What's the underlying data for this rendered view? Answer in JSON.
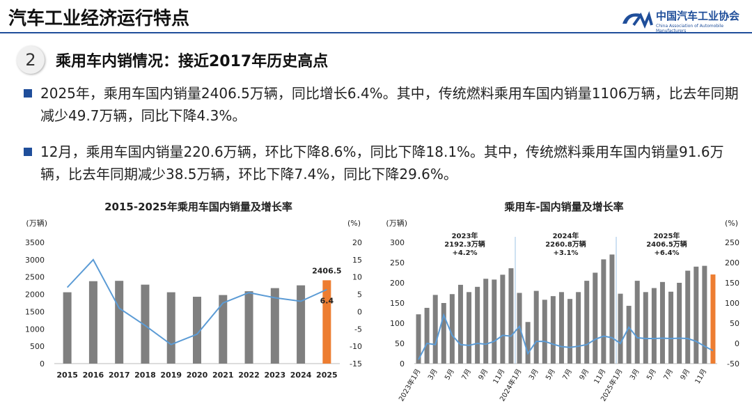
{
  "header": {
    "title": "汽车工业经济运行特点",
    "logo_name": "中国汽车工业协会",
    "logo_subtitle": "China Association of Automobile Manufacturers"
  },
  "section": {
    "number": "2",
    "title": "乘用车内销情况：接近2017年历史高点"
  },
  "bullets": [
    "2025年，乘用车国内销量2406.5万辆，同比增长6.4%。其中，传统燃料乘用车国内销量1106万辆，比去年同期减少49.7万辆，同比下降4.3%。",
    "12月，乘用车国内销量220.6万辆，环比下降8.6%，同比下降18.1%。其中，传统燃料乘用车国内销量91.6万辆，比去年同期减少38.5万辆，环比下降7.4%，同比下降29.6%。"
  ],
  "chart_data": [
    {
      "type": "bar-line",
      "title": "2015-2025年乘用车国内销量及增长率",
      "y_label": "(万辆)",
      "y2_label": "(%)",
      "categories": [
        "2015",
        "2016",
        "2017",
        "2018",
        "2019",
        "2020",
        "2021",
        "2022",
        "2023",
        "2024",
        "2025"
      ],
      "series": [
        {
          "color": "#7f7f7f",
          "last_color": "#ed7d31",
          "values": [
            2060,
            2380,
            2390,
            2280,
            2060,
            1930,
            1980,
            2090,
            2180,
            2260,
            2406.5
          ]
        },
        {
          "color": "#5b9bd5",
          "axis": "y2",
          "values": [
            7,
            15,
            1,
            -4,
            -9.5,
            -6.5,
            2.5,
            5.5,
            4,
            3,
            6.4
          ]
        }
      ],
      "ylim": [
        0,
        3500
      ],
      "yticks": [
        0,
        500,
        1000,
        1500,
        2000,
        2500,
        3000,
        3500
      ],
      "y2lim": [
        -15,
        20
      ],
      "y2ticks": [
        -15,
        -10,
        -5,
        0,
        5,
        10,
        15,
        20
      ]
    },
    {
      "type": "bar-line",
      "title": "乘用车-国内销量及增长率",
      "y_label": "(万辆)",
      "y2_label": "(%)",
      "categories": [
        "2023年1月",
        null,
        "3月",
        null,
        "5月",
        null,
        "7月",
        null,
        "9月",
        null,
        "11月",
        null,
        "2024年1月",
        null,
        "3月",
        null,
        "5月",
        null,
        "7月",
        null,
        "9月",
        null,
        "11月",
        null,
        "2025年1月",
        null,
        "3月",
        null,
        "5月",
        null,
        "7月",
        null,
        "9月",
        null,
        "11月",
        null
      ],
      "series": [
        {
          "color": "#7f7f7f",
          "last_color": "#ed7d31",
          "values": [
            122,
            138,
            170,
            150,
            172,
            195,
            177,
            190,
            210,
            208,
            220,
            236,
            175,
            103,
            180,
            158,
            167,
            177,
            160,
            177,
            205,
            225,
            258,
            270,
            173,
            143,
            205,
            177,
            187,
            202,
            178,
            200,
            230,
            240,
            242,
            220.6
          ]
        },
        {
          "color": "#5b9bd5",
          "axis": "y2",
          "values": [
            -40,
            0,
            -3,
            70,
            20,
            -3,
            -5,
            0,
            -2,
            5,
            20,
            18,
            42,
            -25,
            5,
            5,
            -2,
            -8,
            -10,
            -7,
            -3,
            10,
            18,
            14,
            0,
            40,
            14,
            12,
            12,
            13,
            12,
            13,
            12,
            5,
            -7,
            -18.1
          ]
        }
      ],
      "ylim": [
        0,
        300
      ],
      "yticks": [
        0,
        50,
        100,
        150,
        200,
        250,
        300
      ],
      "y2lim": [
        -50,
        250
      ],
      "y2ticks": [
        -50,
        0,
        50,
        100,
        150,
        200,
        250
      ],
      "annotations": [
        [
          "2023年",
          "2192.3万辆",
          "+4.2%"
        ],
        [
          "2024年",
          "2260.8万辆",
          "+3.1%"
        ],
        [
          "2025年",
          "2406.5万辆",
          "+6.4%"
        ]
      ]
    }
  ]
}
